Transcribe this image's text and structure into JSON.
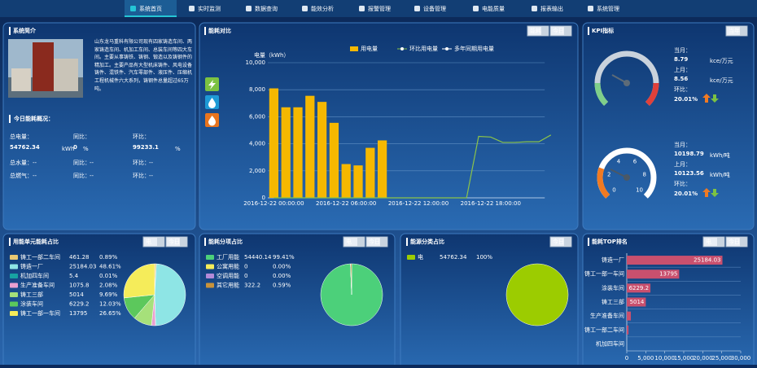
{
  "nav": [
    "系统首页",
    "实时监测",
    "数据查询",
    "能效分析",
    "报警管理",
    "设备管理",
    "电能质量",
    "报表输出",
    "系统管理"
  ],
  "intro": {
    "title": "系统简介",
    "text": "山东龙马重科有限公司现有四家铸造车间、两家铸造车间、机加工车间、总装车间等四大车间。主要从事铸铁、铸钢、锻造以及铸钢件的精加工。主要产品有大型机床铸件、风电设备铸件、混铁件、汽车零部件、液压件、压缩机工程机械件六大系列，铸钢件总量超过65万吨。"
  },
  "today": {
    "title": "今日能耗概况：",
    "yoy_label": "同比：",
    "mom_label": "环比：",
    "elec": {
      "label": "总电量：",
      "value": 54762.34,
      "unit": "kWh",
      "yoy": 0,
      "yoy_unit": "%",
      "mom": 99233.1,
      "mom_unit": "%"
    },
    "water": {
      "label": "总水量：",
      "value": "--",
      "yoy": "--",
      "mom": "--"
    },
    "gas": {
      "label": "总燃气：",
      "value": "--",
      "yoy": "--",
      "mom": "--"
    }
  },
  "controls": {
    "compare": [
      "能耗",
      "今日"
    ],
    "kpi": [
      "当年"
    ],
    "unit": [
      "电",
      "今日"
    ],
    "item": [
      "电",
      "今日"
    ],
    "source": [
      "今日"
    ],
    "top": [
      "电",
      "今日"
    ]
  },
  "kpi": {
    "title": "KPI指标",
    "cur_label": "当月：",
    "last_label": "上月：",
    "mom_label": "环比：",
    "g1": {
      "cur": "8.79",
      "last": "8.56",
      "unit": "kce/万元",
      "mom": "20.01%"
    },
    "g2": {
      "cur": "10198.79",
      "last": "10123.56",
      "unit": "kWh/吨",
      "mom": "20.01%",
      "ticks": [
        0,
        2,
        4,
        6,
        8,
        10
      ]
    }
  },
  "chart_data": [
    {
      "type": "bar",
      "title": "能耗对比",
      "y_label": "电量（kWh）",
      "categories": [
        "2016-12-22 00:00:00",
        null,
        null,
        null,
        null,
        null,
        "2016-12-22 06:00:00",
        null,
        null,
        null,
        null,
        null,
        "2016-12-22 12:00:00",
        null,
        null,
        null,
        null,
        null,
        "2016-12-22 18:00:00",
        null,
        null,
        null,
        null,
        null
      ],
      "series": [
        {
          "name": "用电量",
          "type": "bar",
          "color": "#f5b800",
          "values": [
            8100,
            6700,
            6700,
            7550,
            7100,
            5550,
            2500,
            2400,
            3700,
            4250,
            null,
            null,
            null,
            null,
            null,
            null,
            null,
            null,
            null,
            null,
            null,
            null,
            null,
            null
          ]
        },
        {
          "name": "环比用电量",
          "type": "line",
          "color": "#8bc34a",
          "values": [
            0,
            0,
            0,
            0,
            0,
            0,
            0,
            0,
            0,
            0,
            0,
            0,
            0,
            0,
            0,
            0,
            0,
            4550,
            4500,
            4100,
            4100,
            4150,
            4150,
            4650
          ]
        },
        {
          "name": "多年同期用电量",
          "type": "line",
          "color": "#ffffff",
          "values": [
            null,
            null,
            null,
            null,
            null,
            null,
            null,
            null,
            null,
            null,
            null,
            null,
            null,
            null,
            null,
            null,
            null,
            null,
            null,
            null,
            null,
            null,
            null,
            null
          ]
        }
      ],
      "ylim": [
        0,
        10000
      ],
      "yticks": [
        0,
        {
          "value": 2000,
          "label": "2,000"
        },
        {
          "value": 4000,
          "label": "4,000"
        },
        {
          "value": 6000,
          "label": "6,000"
        },
        {
          "value": 8000,
          "label": "8,000"
        },
        {
          "value": 10000,
          "label": "10,000"
        }
      ],
      "grid": true
    },
    {
      "type": "pie",
      "title": "用能单元能耗占比",
      "categories": [
        "铸工一部二车间",
        "铸造一厂",
        "机加四车间",
        "生产准备车间",
        "铸工三部",
        "涂装车间",
        "铸工一部一车间"
      ],
      "values": [
        461.28,
        25184.03,
        5.4,
        1075.8,
        5014,
        6229.2,
        13795
      ],
      "shares": [
        "0.89%",
        "48.61%",
        "0.01%",
        "2.08%",
        "9.69%",
        "12.03%",
        "26.65%"
      ],
      "colors": [
        "#e8c872",
        "#8ee5e5",
        "#17a2a2",
        "#e9a0d0",
        "#a6e07a",
        "#5cc85c",
        "#f5ec5a"
      ]
    },
    {
      "type": "pie",
      "title": "能耗分项占比",
      "categories": [
        "工厂用能",
        "公寓用能",
        "空调用能",
        "其它用能"
      ],
      "values": [
        54440.14,
        0,
        0,
        322.2
      ],
      "shares": [
        "99.41%",
        "0.00%",
        "0.00%",
        "0.59%"
      ],
      "colors": [
        "#4cd07a",
        "#f5ec5a",
        "#b48ad8",
        "#c8923a"
      ]
    },
    {
      "type": "pie",
      "title": "能源分类占比",
      "categories": [
        "电"
      ],
      "values": [
        54762.34
      ],
      "shares": [
        "100%"
      ],
      "colors": [
        "#9ccc00"
      ]
    },
    {
      "type": "hbar",
      "title": "能耗TOP排名",
      "categories": [
        "铸造一厂",
        "铸工一部一车间",
        "涂装车间",
        "铸工三部",
        "生产准备车间",
        "铸工一部二车间",
        "机加四车间"
      ],
      "values": [
        25184.03,
        13795,
        6229.2,
        5014,
        1075.8,
        461.28,
        5.4
      ],
      "color": "#c9506e",
      "xlim": [
        0,
        30000
      ],
      "xticks": [
        0,
        {
          "value": 5000,
          "label": "5,000"
        },
        {
          "value": 10000,
          "label": "10,000"
        },
        {
          "value": 15000,
          "label": "15,000"
        },
        {
          "value": 20000,
          "label": "20,000"
        },
        {
          "value": 25000,
          "label": "25,000"
        },
        {
          "value": 30000,
          "label": "30,000"
        }
      ]
    }
  ]
}
